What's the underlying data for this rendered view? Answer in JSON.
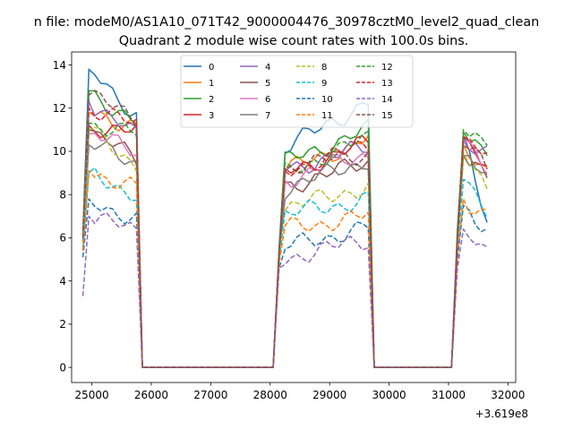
{
  "figure": {
    "suptitle": "n file: modeM0/AS1A10_071T42_9000004476_30978cztM0_level2_quad_clean"
  },
  "chart_data": {
    "type": "line",
    "title": "Quadrant 2 module wise count rates with 100.0s bins.",
    "xlabel": "",
    "ylabel": "",
    "x_offset_label": "+3.619e8",
    "xlim": [
      24660,
      32130
    ],
    "ylim": [
      -0.7,
      14.6
    ],
    "x_ticks": [
      25000,
      26000,
      27000,
      28000,
      29000,
      30000,
      31000,
      32000
    ],
    "y_ticks": [
      0,
      2,
      4,
      6,
      8,
      10,
      12,
      14
    ],
    "x_tick_labels": [
      "25000",
      "26000",
      "27000",
      "28000",
      "29000",
      "30000",
      "31000",
      "32000"
    ],
    "y_tick_labels": [
      "0",
      "2",
      "4",
      "6",
      "8",
      "10",
      "12",
      "14"
    ],
    "grid": false,
    "legend_placement": "top-center",
    "legend_columns": 4,
    "series": [
      {
        "name": "0",
        "color": "#1f77b4",
        "dash": "solid",
        "levels": [
          13.8,
          11.7,
          10.0,
          12.3,
          10.7,
          6.9
        ],
        "lows": [
          6.3,
          5.5,
          6.4
        ]
      },
      {
        "name": "1",
        "color": "#ff7f0e",
        "dash": "solid",
        "levels": [
          11.8,
          11.2,
          9.0,
          10.6,
          10.3,
          9.2
        ],
        "lows": [
          5.8,
          5.1,
          5.7
        ]
      },
      {
        "name": "2",
        "color": "#2ca02c",
        "dash": "solid",
        "levels": [
          12.8,
          11.3,
          9.4,
          11.0,
          10.9,
          10.1
        ],
        "lows": [
          6.1,
          5.4,
          6.1
        ]
      },
      {
        "name": "3",
        "color": "#d62728",
        "dash": "solid",
        "levels": [
          11.2,
          10.9,
          8.9,
          10.4,
          10.7,
          9.4
        ],
        "lows": [
          6.0,
          5.3,
          6.0
        ]
      },
      {
        "name": "4",
        "color": "#9467bd",
        "dash": "solid",
        "levels": [
          12.3,
          10.7,
          9.1,
          10.2,
          10.5,
          9.8
        ],
        "lows": [
          5.9,
          5.3,
          5.9
        ]
      },
      {
        "name": "5",
        "color": "#8c564b",
        "dash": "solid",
        "levels": [
          11.0,
          9.6,
          8.3,
          9.5,
          9.8,
          8.6
        ],
        "lows": [
          5.8,
          5.2,
          5.8
        ]
      },
      {
        "name": "6",
        "color": "#e377c2",
        "dash": "solid",
        "levels": [
          10.8,
          10.0,
          8.6,
          9.9,
          10.4,
          9.0
        ],
        "lows": [
          5.9,
          5.3,
          5.9
        ]
      },
      {
        "name": "7",
        "color": "#7f7f7f",
        "dash": "solid",
        "levels": [
          10.3,
          9.5,
          8.2,
          9.6,
          9.8,
          8.8
        ],
        "lows": [
          5.8,
          5.2,
          5.8
        ]
      },
      {
        "name": "8",
        "color": "#bcbd22",
        "dash": "dashed",
        "levels": [
          11.0,
          9.4,
          7.3,
          8.4,
          9.9,
          8.3
        ],
        "lows": [
          5.7,
          5.1,
          5.6
        ]
      },
      {
        "name": "9",
        "color": "#17becf",
        "dash": "dashed",
        "levels": [
          9.0,
          8.0,
          7.0,
          7.8,
          8.7,
          7.4
        ],
        "lows": [
          5.5,
          4.9,
          5.4
        ]
      },
      {
        "name": "10",
        "color": "#1f77b4",
        "dash": "dashed",
        "levels": [
          7.8,
          6.8,
          5.5,
          6.5,
          7.5,
          6.5
        ],
        "lows": [
          5.1,
          4.6,
          5.0
        ]
      },
      {
        "name": "11",
        "color": "#ff7f0e",
        "dash": "dashed",
        "levels": [
          9.1,
          8.3,
          6.4,
          7.0,
          7.8,
          7.1
        ],
        "lows": [
          5.4,
          4.8,
          5.3
        ]
      },
      {
        "name": "12",
        "color": "#2ca02c",
        "dash": "dashed",
        "levels": [
          11.3,
          10.8,
          8.9,
          10.6,
          11.0,
          10.4
        ],
        "lows": [
          6.0,
          5.3,
          6.0
        ]
      },
      {
        "name": "13",
        "color": "#d62728",
        "dash": "dashed",
        "levels": [
          12.0,
          11.2,
          9.0,
          10.3,
          10.6,
          9.8
        ],
        "lows": [
          6.0,
          5.3,
          6.0
        ]
      },
      {
        "name": "14",
        "color": "#9467bd",
        "dash": "dashed",
        "levels": [
          7.0,
          6.3,
          5.0,
          5.9,
          6.4,
          5.1
        ],
        "lows": [
          3.3,
          4.6,
          4.6
        ]
      },
      {
        "name": "15",
        "color": "#8c564b",
        "dash": "dashed",
        "levels": [
          12.6,
          11.5,
          9.2,
          9.9,
          10.3,
          9.2
        ],
        "lows": [
          6.0,
          5.3,
          6.0
        ]
      }
    ]
  }
}
